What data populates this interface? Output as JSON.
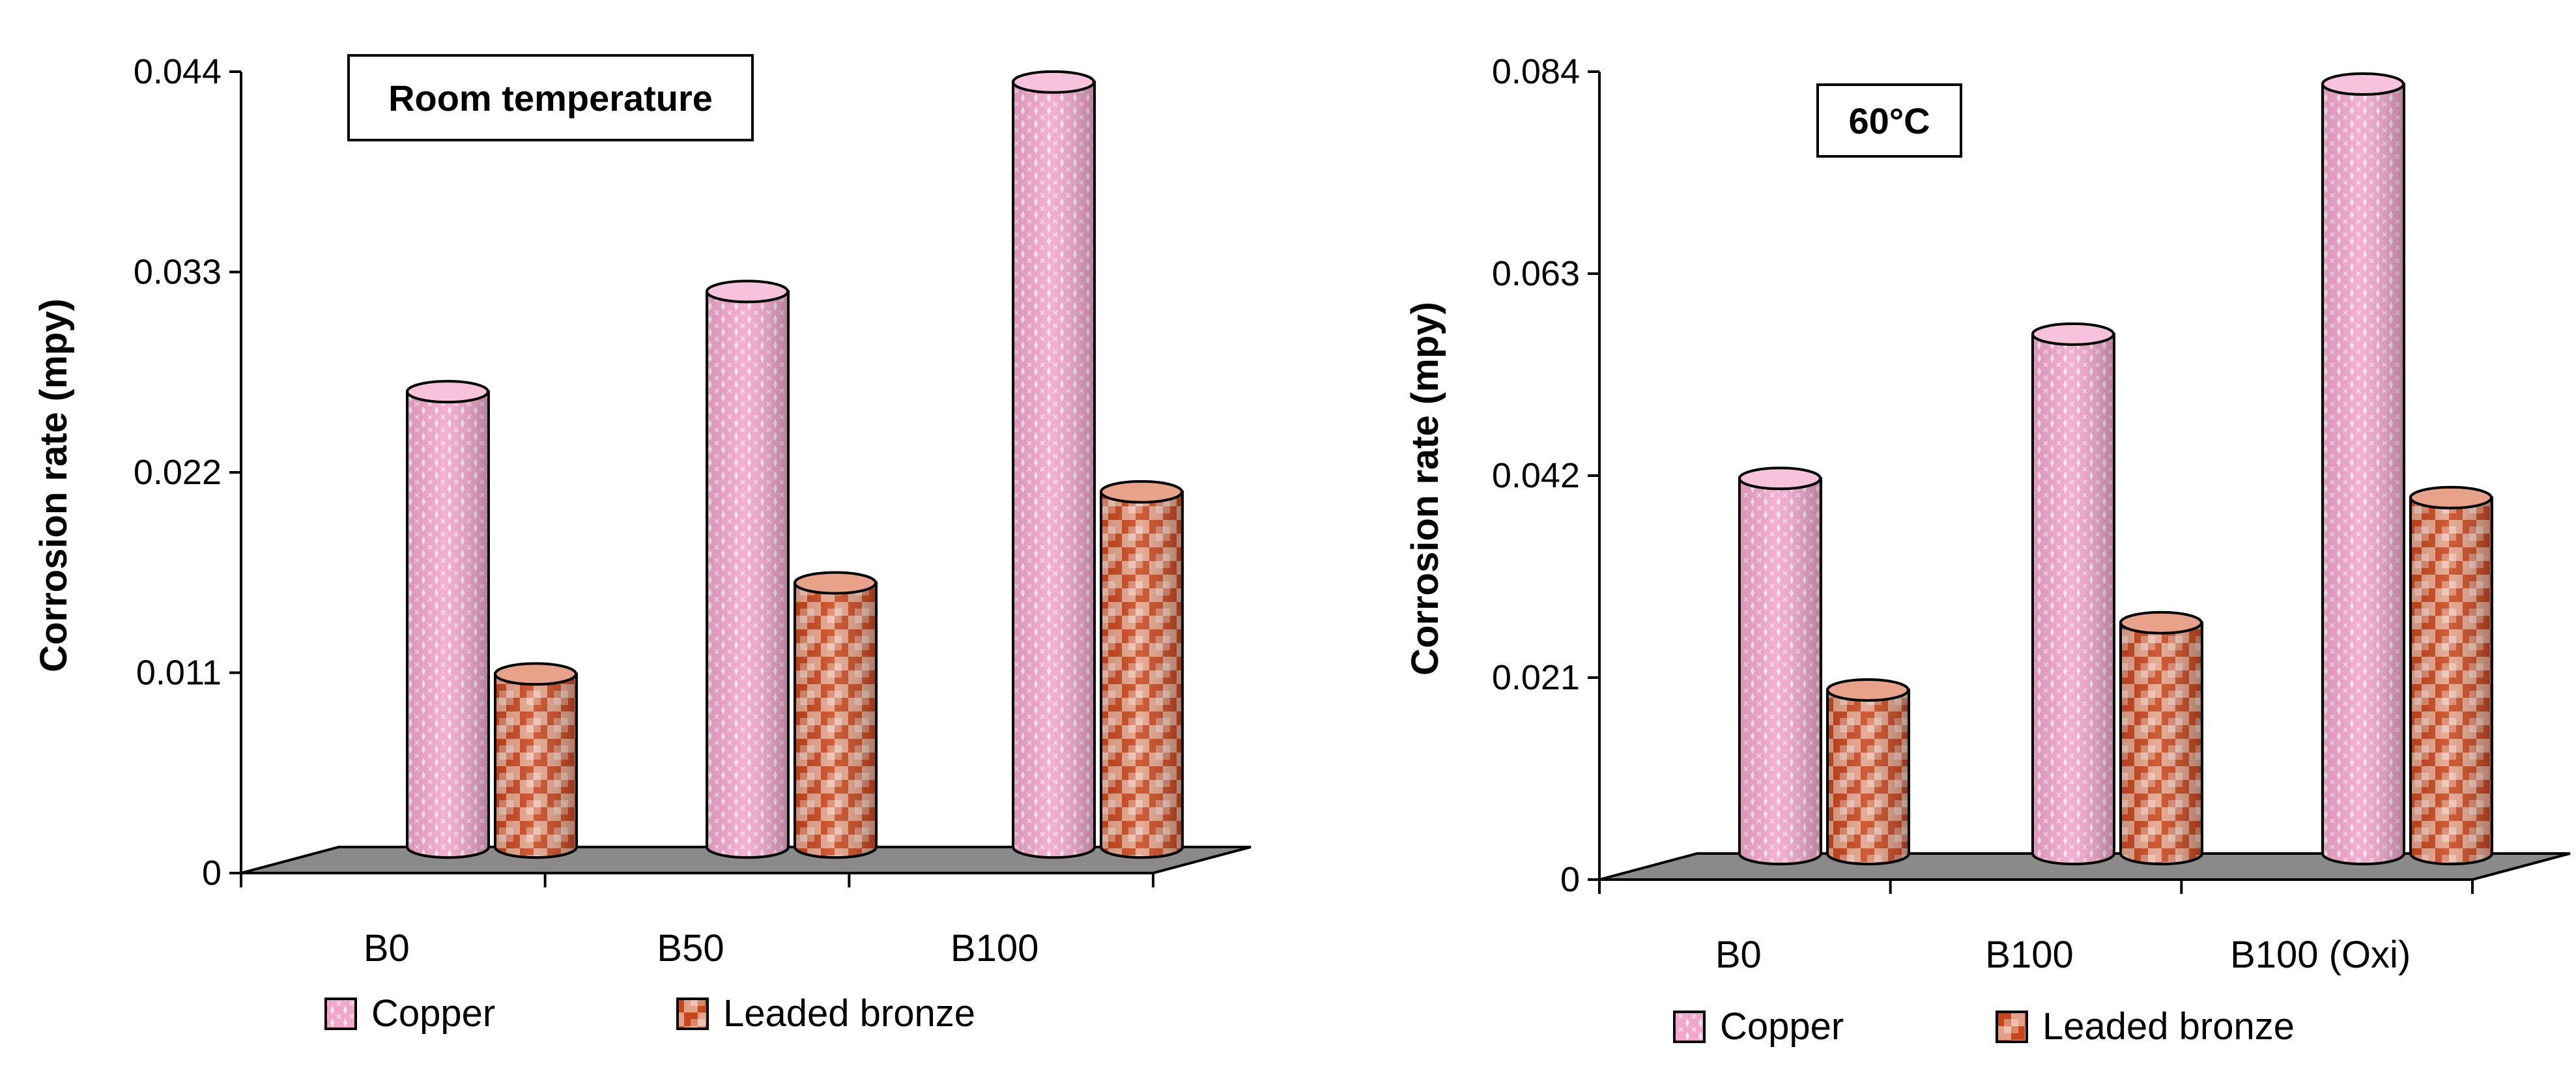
{
  "chart_data": [
    {
      "type": "bar",
      "title": "Room temperature",
      "xlabel": "",
      "ylabel": "Corrosion rate (mpy)",
      "ylim": [
        0,
        0.044
      ],
      "yticks": [
        "0",
        "0.011",
        "0.022",
        "0.033",
        "0.044"
      ],
      "categories": [
        "B0",
        "B50",
        "B100"
      ],
      "series": [
        {
          "name": "Copper",
          "values": [
            0.025,
            0.0305,
            0.042
          ]
        },
        {
          "name": "Leaded bronze",
          "values": [
            0.0095,
            0.0145,
            0.0195
          ]
        }
      ],
      "legend": "bottom",
      "grid": false
    },
    {
      "type": "bar",
      "title": "60°C",
      "xlabel": "",
      "ylabel": "Corrosion rate (mpy)",
      "ylim": [
        0,
        0.084
      ],
      "yticks": [
        "0",
        "0.021",
        "0.042",
        "0.063",
        "0.084"
      ],
      "categories": [
        "B0",
        "B100",
        "B100 (Oxi)"
      ],
      "series": [
        {
          "name": "Copper",
          "values": [
            0.039,
            0.054,
            0.08
          ]
        },
        {
          "name": "Leaded bronze",
          "values": [
            0.017,
            0.024,
            0.037
          ]
        }
      ],
      "legend": "bottom",
      "grid": false
    }
  ],
  "colors": {
    "copper_fill": "#f2a6cc",
    "copper_pattern": "#ffffff",
    "bronze_fill": "#ffffff",
    "bronze_pattern": "#c8461c",
    "floor": "#8a8a8a",
    "axis": "#000000"
  }
}
